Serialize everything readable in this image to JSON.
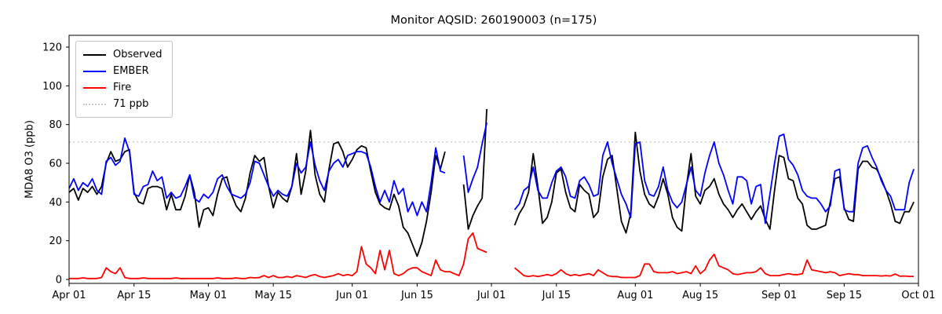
{
  "chart_data": {
    "type": "line",
    "title": "Monitor AQSID: 260190003 (n=175)",
    "xlabel": "",
    "ylabel": "MDA8 O3 (ppb)",
    "grid": false,
    "legend_position": "upper left",
    "ylim": [
      -2,
      126
    ],
    "yticks": [
      0,
      20,
      40,
      60,
      80,
      100,
      120
    ],
    "x_start_date": "Apr 01",
    "x_end_date": "Oct 01",
    "n_days": 183,
    "xtick_days": [
      0,
      14,
      30,
      44,
      61,
      75,
      91,
      105,
      122,
      136,
      153,
      167,
      183
    ],
    "xtick_labels": [
      "Apr 01",
      "Apr 15",
      "May 01",
      "May 15",
      "Jun 01",
      "Jun 15",
      "Jul 01",
      "Jul 15",
      "Aug 01",
      "Aug 15",
      "Sep 01",
      "Sep 15",
      "Oct 01"
    ],
    "threshold": {
      "label": "71 ppb",
      "value": 71,
      "color": "#c8c8c8",
      "style": "dotted"
    },
    "legend_entries": [
      "Observed",
      "EMBER",
      "Fire",
      "71 ppb"
    ],
    "series": [
      {
        "name": "Observed",
        "color": "#000000",
        "values": [
          45,
          47,
          41,
          47,
          45,
          48,
          44,
          48,
          60,
          66,
          61,
          62,
          66,
          67,
          45,
          40,
          39,
          47,
          48,
          48,
          47,
          36,
          44,
          36,
          36,
          43,
          54,
          45,
          27,
          36,
          37,
          33,
          44,
          52,
          53,
          44,
          38,
          35,
          42,
          55,
          64,
          61,
          63,
          48,
          37,
          45,
          42,
          40,
          48,
          65,
          44,
          56,
          77,
          54,
          44,
          40,
          57,
          70,
          71,
          66,
          58,
          62,
          67,
          69,
          68,
          56,
          45,
          39,
          37,
          36,
          44,
          38,
          27,
          24,
          18,
          12,
          19,
          30,
          45,
          64,
          57,
          66,
          null,
          null,
          null,
          49,
          26,
          33,
          38,
          42,
          88,
          null,
          null,
          null,
          null,
          null,
          28,
          34,
          38,
          45,
          65,
          48,
          29,
          32,
          40,
          55,
          57,
          45,
          37,
          35,
          49,
          46,
          44,
          32,
          35,
          53,
          62,
          64,
          47,
          30,
          24,
          34,
          76,
          56,
          44,
          39,
          37,
          43,
          52,
          44,
          32,
          27,
          25,
          48,
          65,
          43,
          39,
          46,
          48,
          52,
          44,
          39,
          36,
          32,
          36,
          39,
          35,
          31,
          35,
          38,
          31,
          26,
          46,
          64,
          63,
          52,
          51,
          42,
          39,
          28,
          26,
          26,
          27,
          28,
          40,
          52,
          53,
          37,
          31,
          30,
          57,
          61,
          61,
          58,
          57,
          52,
          46,
          39,
          30,
          29,
          35,
          35,
          40
        ]
      },
      {
        "name": "EMBER",
        "color": "#0000ff",
        "values": [
          47,
          52,
          46,
          50,
          48,
          52,
          46,
          44,
          61,
          63,
          59,
          61,
          73,
          66,
          44,
          43,
          48,
          49,
          56,
          51,
          53,
          42,
          45,
          42,
          43,
          48,
          54,
          42,
          40,
          44,
          42,
          45,
          52,
          54,
          48,
          44,
          43,
          42,
          44,
          50,
          61,
          60,
          54,
          48,
          43,
          46,
          44,
          43,
          48,
          60,
          55,
          58,
          71,
          59,
          51,
          46,
          56,
          60,
          62,
          58,
          64,
          65,
          66,
          66,
          65,
          58,
          48,
          40,
          46,
          40,
          51,
          44,
          47,
          35,
          40,
          33,
          40,
          35,
          50,
          68,
          56,
          55,
          null,
          null,
          null,
          64,
          45,
          52,
          58,
          70,
          81,
          null,
          null,
          null,
          null,
          null,
          36,
          39,
          46,
          48,
          58,
          46,
          42,
          42,
          50,
          56,
          58,
          53,
          43,
          42,
          51,
          53,
          49,
          43,
          44,
          64,
          71,
          60,
          52,
          44,
          39,
          32,
          70,
          71,
          51,
          44,
          43,
          48,
          58,
          46,
          40,
          37,
          40,
          49,
          58,
          46,
          43,
          55,
          64,
          71,
          60,
          54,
          46,
          39,
          53,
          53,
          51,
          39,
          48,
          49,
          29,
          44,
          60,
          74,
          75,
          62,
          59,
          54,
          46,
          43,
          42,
          42,
          39,
          35,
          38,
          56,
          57,
          36,
          35,
          35,
          60,
          68,
          69,
          63,
          58,
          51,
          46,
          43,
          36,
          36,
          36,
          50,
          57
        ]
      },
      {
        "name": "Fire",
        "color": "#ff0000",
        "values": [
          0.5,
          0.5,
          0.5,
          0.8,
          0.5,
          0.5,
          0.5,
          1,
          6,
          4,
          3,
          6,
          1,
          0.5,
          0.5,
          0.5,
          0.8,
          0.5,
          0.5,
          0.5,
          0.5,
          0.5,
          0.5,
          0.8,
          0.5,
          0.5,
          0.5,
          0.5,
          0.5,
          0.5,
          0.5,
          0.5,
          0.8,
          0.5,
          0.5,
          0.5,
          0.8,
          0.5,
          0.5,
          1,
          0.8,
          1,
          2,
          1,
          2,
          1,
          1,
          1.5,
          1,
          2,
          1.5,
          1,
          2,
          2.5,
          1.5,
          1,
          1.5,
          2,
          3,
          2,
          2.5,
          2,
          4,
          17,
          8,
          6,
          3,
          15,
          5,
          15,
          3,
          2,
          3,
          5,
          6,
          6,
          4,
          3,
          2,
          10,
          5,
          4,
          4,
          3,
          2,
          8,
          21,
          24,
          16,
          15,
          14,
          null,
          null,
          null,
          null,
          null,
          6,
          4,
          2,
          1.5,
          2,
          1.5,
          2,
          2.5,
          2,
          3,
          5,
          3,
          2,
          2.5,
          2,
          2.5,
          3,
          2,
          5,
          3.5,
          2,
          1.5,
          1.5,
          1,
          1,
          1,
          1,
          2,
          8,
          8,
          4,
          3.5,
          3.5,
          3.5,
          4,
          3,
          3.5,
          4,
          3,
          7,
          3,
          5,
          10,
          13,
          7,
          6,
          5,
          3,
          2.5,
          3,
          3.5,
          3.5,
          4,
          6,
          3,
          2,
          2,
          2,
          2.5,
          3,
          2.5,
          2.5,
          3,
          10,
          5,
          4.5,
          4,
          3.5,
          4,
          3.5,
          2,
          2.5,
          3,
          2.5,
          2.5,
          2,
          2,
          2,
          2,
          1.8,
          2,
          1.8,
          2.8,
          1.7,
          1.8,
          1.6,
          1.6
        ]
      }
    ]
  }
}
